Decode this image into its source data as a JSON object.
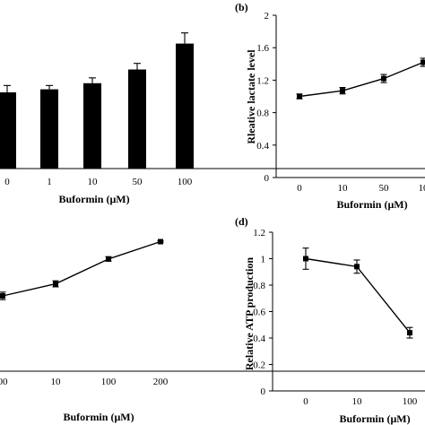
{
  "chart_data": [
    {
      "id": "a",
      "type": "bar",
      "panel_label": "",
      "categories": [
        "0",
        "1",
        "10",
        "50",
        "100"
      ],
      "values": [
        1.0,
        1.04,
        1.12,
        1.3,
        1.64
      ],
      "errors": [
        0.09,
        0.05,
        0.07,
        0.08,
        0.14
      ],
      "ylim": [
        0,
        2
      ],
      "yticks": [],
      "xlabel": "Buformin (μM)",
      "ylabel": ""
    },
    {
      "id": "b",
      "type": "line",
      "panel_label": "(b)",
      "categories": [
        "0",
        "10",
        "50",
        "10"
      ],
      "values": [
        1.0,
        1.07,
        1.22,
        1.42
      ],
      "errors": [
        0.03,
        0.04,
        0.05,
        0.05
      ],
      "ylim": [
        0,
        2
      ],
      "yticks": [
        "0",
        "0.4",
        "0.8",
        "1.2",
        "1.6",
        "2"
      ],
      "xlabel": "Buformin (μM)",
      "ylabel": "Rleative lactate level"
    },
    {
      "id": "c",
      "type": "line",
      "panel_label": "",
      "categories": [
        "00",
        "10",
        "100",
        "200"
      ],
      "values": [
        1.0,
        1.16,
        1.49,
        1.72
      ],
      "errors": [
        0.05,
        0.04,
        0.03,
        0.01
      ],
      "ylim": [
        0,
        2
      ],
      "yticks": [],
      "xlabel": "Buformin (μM)",
      "ylabel": ""
    },
    {
      "id": "d",
      "type": "line",
      "panel_label": "(d)",
      "categories": [
        "0",
        "10",
        "100"
      ],
      "values": [
        1.0,
        0.94,
        0.44
      ],
      "errors": [
        0.08,
        0.05,
        0.04
      ],
      "ylim": [
        0,
        1.2
      ],
      "yticks": [
        "0",
        "0.2",
        "0.4",
        "0.6",
        "0.8",
        "1",
        "1.2"
      ],
      "xlabel": "Buformin (μM)",
      "ylabel": "Relative ATP production"
    }
  ]
}
